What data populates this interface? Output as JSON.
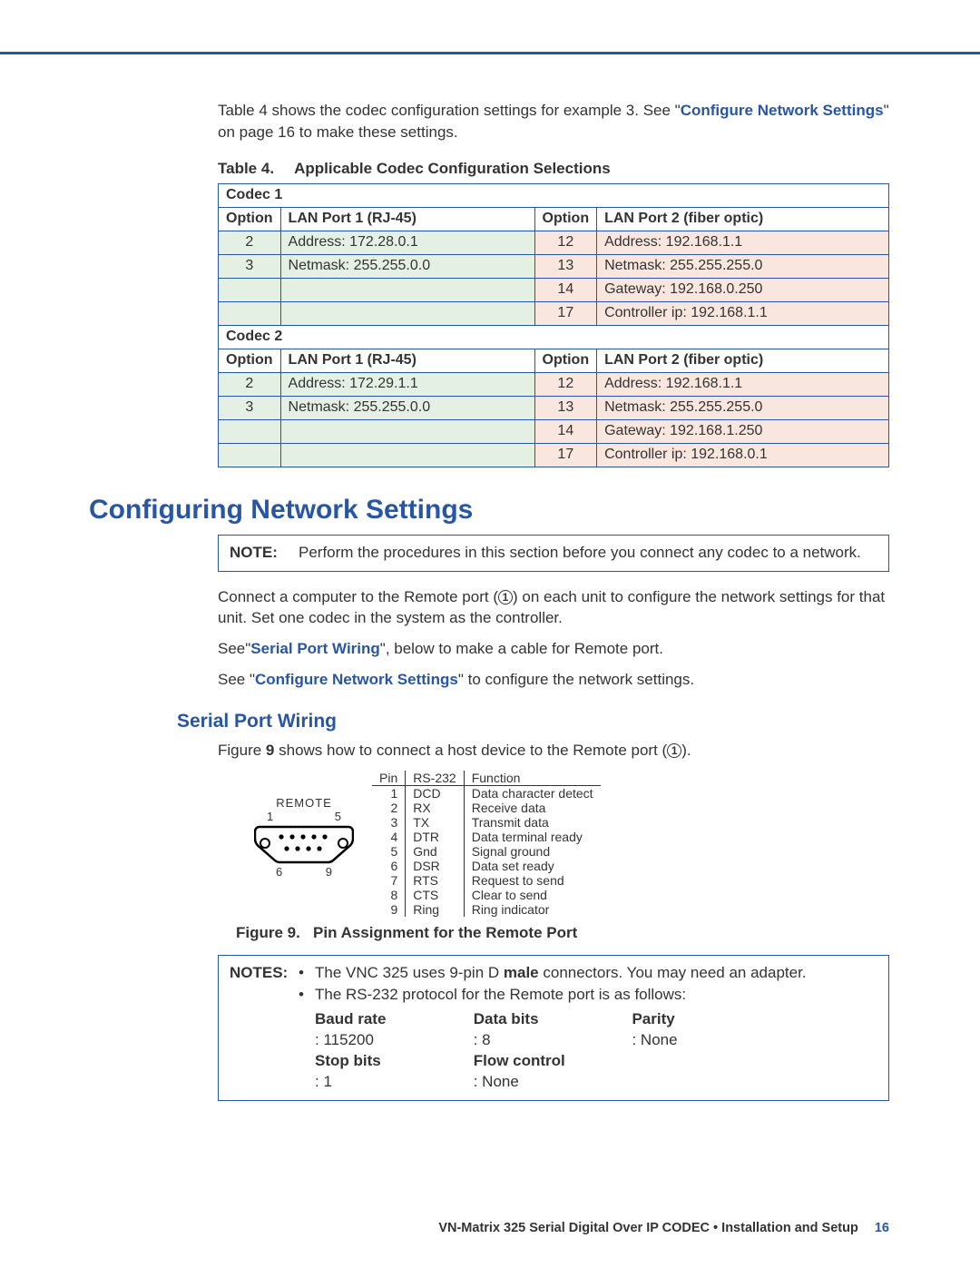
{
  "intro": {
    "text1": "Table 4 shows the codec configuration settings for example 3. See \"",
    "link1": "Configure Network Settings",
    "text2": "\" on page 16 to make these settings."
  },
  "table4": {
    "caption_label": "Table 4.",
    "caption_text": "Applicable Codec Configuration Selections",
    "headers": {
      "option": "Option",
      "lan1": "LAN Port 1 (RJ-45)",
      "lan2": "LAN Port 2 (fiber optic)"
    },
    "codec1": {
      "title": "Codec 1",
      "rows": [
        {
          "o1": "2",
          "v1": "Address: 172.28.0.1",
          "o2": "12",
          "v2": "Address: 192.168.1.1"
        },
        {
          "o1": "3",
          "v1": "Netmask: 255.255.0.0",
          "o2": "13",
          "v2": "Netmask: 255.255.255.0"
        },
        {
          "o1": "",
          "v1": "",
          "o2": "14",
          "v2": "Gateway: 192.168.0.250"
        },
        {
          "o1": "",
          "v1": "",
          "o2": "17",
          "v2": "Controller ip: 192.168.1.1"
        }
      ]
    },
    "codec2": {
      "title": "Codec 2",
      "rows": [
        {
          "o1": "2",
          "v1": "Address: 172.29.1.1",
          "o2": "12",
          "v2": "Address: 192.168.1.1"
        },
        {
          "o1": "3",
          "v1": "Netmask: 255.255.0.0",
          "o2": "13",
          "v2": "Netmask: 255.255.255.0"
        },
        {
          "o1": "",
          "v1": "",
          "o2": "14",
          "v2": "Gateway: 192.168.1.250"
        },
        {
          "o1": "",
          "v1": "",
          "o2": "17",
          "v2": "Controller ip: 192.168.0.1"
        }
      ]
    }
  },
  "h_main": "Configuring Network Settings",
  "note1": {
    "label": "NOTE:",
    "text": "Perform the procedures in this section before you connect any codec to a network."
  },
  "para1a": "Connect a computer to the Remote port (",
  "para1b": ") on each unit to configure the network settings for that unit. Set one codec in the system as the controller.",
  "para2a": "See\"",
  "para2link": "Serial Port Wiring",
  "para2b": "\", below to make a cable for Remote port.",
  "para3a": "See \"",
  "para3link": "Configure Network Settings",
  "para3b": "\" to configure the network settings.",
  "h_sub": "Serial Port Wiring",
  "fig_intro_a": "Figure ",
  "fig_intro_num": "9",
  "fig_intro_b": " shows how to connect a host device to the Remote port (",
  "fig_intro_c": ").",
  "connector_label": "REMOTE",
  "pin_nums_top": {
    "l": "1",
    "r": "5"
  },
  "pin_nums_bot": {
    "l": "6",
    "r": "9"
  },
  "pin_table": {
    "headers": {
      "pin": "Pin",
      "rs": "RS-232",
      "fn": "Function"
    },
    "rows": [
      {
        "pin": "1",
        "rs": "DCD",
        "fn": "Data character detect"
      },
      {
        "pin": "2",
        "rs": "RX",
        "fn": "Receive data"
      },
      {
        "pin": "3",
        "rs": "TX",
        "fn": "Transmit data"
      },
      {
        "pin": "4",
        "rs": "DTR",
        "fn": "Data terminal ready"
      },
      {
        "pin": "5",
        "rs": "Gnd",
        "fn": "Signal ground"
      },
      {
        "pin": "6",
        "rs": "DSR",
        "fn": "Data set ready"
      },
      {
        "pin": "7",
        "rs": "RTS",
        "fn": "Request to send"
      },
      {
        "pin": "8",
        "rs": "CTS",
        "fn": "Clear to send"
      },
      {
        "pin": "9",
        "rs": "Ring",
        "fn": "Ring indicator"
      }
    ]
  },
  "fig_caption_label": "Figure 9.",
  "fig_caption_text": "Pin Assignment for the Remote Port",
  "notes2": {
    "label": "NOTES:",
    "bullet1a": "The VNC 325 uses 9-pin D ",
    "bullet1b": "male",
    "bullet1c": " connectors. You may need an adapter.",
    "bullet2": "The RS-232 protocol for the Remote port is as follows:",
    "params": {
      "baud_l": "Baud rate",
      "baud_v": ": 115200",
      "data_l": "Data bits",
      "data_v": ": 8",
      "parity_l": "Parity",
      "parity_v": ": None",
      "stop_l": "Stop bits",
      "stop_v": ": 1",
      "flow_l": "Flow control",
      "flow_v": ": None"
    }
  },
  "footer": {
    "text": "VN-Matrix 325 Serial Digital Over IP CODEC • Installation and Setup",
    "page": "16"
  },
  "colors": {
    "accent": "#2956a3",
    "green": "#e5f0e5",
    "pink": "#f9e6df"
  }
}
